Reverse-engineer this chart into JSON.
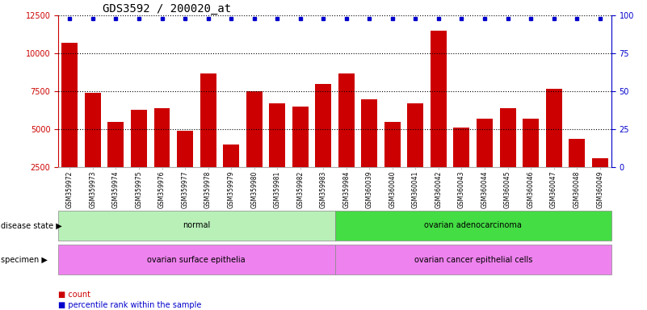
{
  "title": "GDS3592 / 200020_at",
  "samples": [
    "GSM359972",
    "GSM359973",
    "GSM359974",
    "GSM359975",
    "GSM359976",
    "GSM359977",
    "GSM359978",
    "GSM359979",
    "GSM359980",
    "GSM359981",
    "GSM359982",
    "GSM359983",
    "GSM359984",
    "GSM360039",
    "GSM360040",
    "GSM360041",
    "GSM360042",
    "GSM360043",
    "GSM360044",
    "GSM360045",
    "GSM360046",
    "GSM360047",
    "GSM360048",
    "GSM360049"
  ],
  "counts": [
    10700,
    7400,
    5500,
    6300,
    6400,
    4900,
    8700,
    4000,
    7500,
    6700,
    6500,
    8000,
    8700,
    7000,
    5500,
    6700,
    11500,
    5100,
    5700,
    6400,
    5700,
    7700,
    4400,
    3100
  ],
  "bar_color": "#CC0000",
  "dot_color": "#0000CC",
  "ylim_left": [
    2500,
    12500
  ],
  "ylim_right": [
    0,
    100
  ],
  "yticks_left": [
    2500,
    5000,
    7500,
    10000,
    12500
  ],
  "yticks_right": [
    0,
    25,
    50,
    75,
    100
  ],
  "disease_state_groups": [
    {
      "label": "normal",
      "start": 0,
      "end": 12,
      "color": "#B8F0B8"
    },
    {
      "label": "ovarian adenocarcinoma",
      "start": 12,
      "end": 24,
      "color": "#44DD44"
    }
  ],
  "specimen_groups": [
    {
      "label": "ovarian surface epithelia",
      "start": 0,
      "end": 12,
      "color": "#EE82EE"
    },
    {
      "label": "ovarian cancer epithelial cells",
      "start": 12,
      "end": 24,
      "color": "#EE82EE"
    }
  ],
  "background_color": "#FFFFFF",
  "title_fontsize": 10,
  "bar_width": 0.7
}
